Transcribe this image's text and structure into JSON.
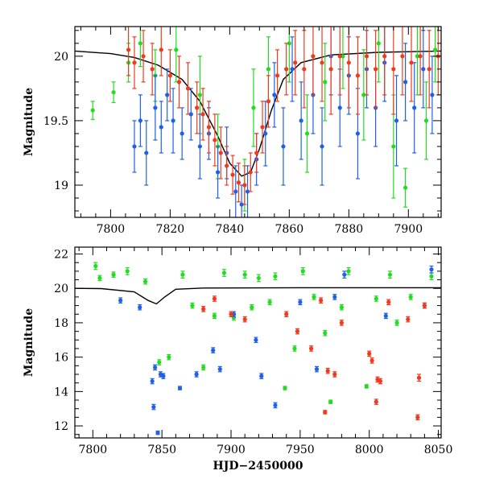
{
  "chart_data": [
    {
      "type": "scatter",
      "title": "",
      "xlabel": "",
      "ylabel": "Magnitude",
      "xlim": [
        7788,
        7911
      ],
      "ylim": [
        20.23,
        18.75
      ],
      "y_inverted": true,
      "grid": false,
      "x_ticks": [
        7800,
        7820,
        7840,
        7860,
        7880,
        7900
      ],
      "y_ticks": [
        19,
        19.5,
        20
      ],
      "y_tick_labels": [
        "19",
        "19.5",
        "20"
      ],
      "x_minor_step": 5,
      "y_minor_step": 0.1,
      "error_bars": true,
      "model_curve": {
        "color": "#000000",
        "points": [
          [
            7788,
            20.04
          ],
          [
            7800,
            20.02
          ],
          [
            7808,
            19.99
          ],
          [
            7816,
            19.93
          ],
          [
            7824,
            19.82
          ],
          [
            7830,
            19.65
          ],
          [
            7836,
            19.38
          ],
          [
            7840,
            19.17
          ],
          [
            7844,
            19.07
          ],
          [
            7847,
            19.1
          ],
          [
            7850,
            19.28
          ],
          [
            7854,
            19.58
          ],
          [
            7858,
            19.82
          ],
          [
            7864,
            19.95
          ],
          [
            7874,
            20.01
          ],
          [
            7890,
            20.03
          ],
          [
            7911,
            20.04
          ]
        ]
      },
      "series": [
        {
          "name": "",
          "color": "#21dc21",
          "points": [
            [
              7794,
              19.58,
              0.07
            ],
            [
              7801,
              19.72,
              0.08
            ],
            [
              7806,
              19.95,
              0.15
            ],
            [
              7810,
              20.1,
              0.18
            ],
            [
              7815,
              19.85,
              0.2
            ],
            [
              7822,
              20.05,
              0.25
            ],
            [
              7830,
              19.7,
              0.3
            ],
            [
              7836,
              19.3,
              0.25
            ],
            [
              7845,
              19.0,
              0.2
            ],
            [
              7848,
              19.6,
              0.3
            ],
            [
              7853,
              19.9,
              0.25
            ],
            [
              7860,
              20.1,
              0.3
            ],
            [
              7866,
              19.4,
              0.3
            ],
            [
              7872,
              19.8,
              0.3
            ],
            [
              7878,
              20.0,
              0.25
            ],
            [
              7885,
              19.7,
              0.35
            ],
            [
              7890,
              20.1,
              0.3
            ],
            [
              7895,
              19.3,
              0.4
            ],
            [
              7899,
              18.98,
              0.15
            ],
            [
              7903,
              20.0,
              0.3
            ],
            [
              7906,
              19.5,
              0.3
            ],
            [
              7909,
              20.05,
              0.25
            ]
          ]
        },
        {
          "name": "",
          "color": "#2060e8",
          "points": [
            [
              7808,
              19.3,
              0.2
            ],
            [
              7810,
              19.5,
              0.2
            ],
            [
              7812,
              19.25,
              0.25
            ],
            [
              7815,
              19.6,
              0.25
            ],
            [
              7817,
              19.45,
              0.2
            ],
            [
              7819,
              19.7,
              0.2
            ],
            [
              7821,
              19.5,
              0.25
            ],
            [
              7824,
              19.4,
              0.2
            ],
            [
              7827,
              19.55,
              0.2
            ],
            [
              7830,
              19.3,
              0.25
            ],
            [
              7833,
              19.4,
              0.2
            ],
            [
              7836,
              19.1,
              0.2
            ],
            [
              7839,
              19.25,
              0.2
            ],
            [
              7842,
              18.95,
              0.2
            ],
            [
              7844,
              18.85,
              0.15
            ],
            [
              7846,
              18.95,
              0.2
            ],
            [
              7849,
              19.2,
              0.2
            ],
            [
              7852,
              19.4,
              0.25
            ],
            [
              7855,
              19.7,
              0.25
            ],
            [
              7858,
              19.3,
              0.3
            ],
            [
              7861,
              19.9,
              0.25
            ],
            [
              7864,
              19.5,
              0.3
            ],
            [
              7868,
              19.7,
              0.3
            ],
            [
              7871,
              19.3,
              0.3
            ],
            [
              7874,
              20.0,
              0.3
            ],
            [
              7877,
              19.6,
              0.3
            ],
            [
              7880,
              19.85,
              0.3
            ],
            [
              7883,
              19.4,
              0.35
            ],
            [
              7886,
              19.9,
              0.3
            ],
            [
              7889,
              19.6,
              0.3
            ],
            [
              7892,
              19.95,
              0.3
            ],
            [
              7896,
              19.5,
              0.35
            ],
            [
              7899,
              19.8,
              0.3
            ],
            [
              7902,
              19.6,
              0.35
            ],
            [
              7905,
              19.9,
              0.3
            ],
            [
              7908,
              19.7,
              0.3
            ]
          ]
        },
        {
          "name": "",
          "color": "#f03a1e",
          "points": [
            [
              7806,
              20.05,
              0.2
            ],
            [
              7808,
              19.95,
              0.2
            ],
            [
              7811,
              20.0,
              0.2
            ],
            [
              7814,
              19.9,
              0.2
            ],
            [
              7817,
              20.05,
              0.2
            ],
            [
              7820,
              19.85,
              0.2
            ],
            [
              7823,
              19.8,
              0.2
            ],
            [
              7826,
              19.75,
              0.2
            ],
            [
              7829,
              19.6,
              0.2
            ],
            [
              7831,
              19.55,
              0.2
            ],
            [
              7833,
              19.45,
              0.2
            ],
            [
              7835,
              19.35,
              0.2
            ],
            [
              7837,
              19.25,
              0.2
            ],
            [
              7839,
              19.15,
              0.15
            ],
            [
              7841,
              19.08,
              0.15
            ],
            [
              7843,
              19.02,
              0.15
            ],
            [
              7845,
              19.0,
              0.15
            ],
            [
              7847,
              19.1,
              0.15
            ],
            [
              7849,
              19.25,
              0.15
            ],
            [
              7851,
              19.45,
              0.2
            ],
            [
              7853,
              19.65,
              0.2
            ],
            [
              7856,
              19.85,
              0.2
            ],
            [
              7859,
              19.9,
              0.2
            ],
            [
              7862,
              19.95,
              0.25
            ],
            [
              7865,
              19.9,
              0.3
            ],
            [
              7868,
              20.0,
              0.3
            ],
            [
              7871,
              19.95,
              0.3
            ],
            [
              7874,
              19.9,
              0.35
            ],
            [
              7877,
              20.0,
              0.3
            ],
            [
              7880,
              19.95,
              0.35
            ],
            [
              7883,
              19.85,
              0.3
            ],
            [
              7886,
              20.0,
              0.3
            ],
            [
              7889,
              19.9,
              0.3
            ],
            [
              7892,
              20.0,
              0.3
            ],
            [
              7895,
              19.9,
              0.35
            ],
            [
              7898,
              20.0,
              0.3
            ],
            [
              7901,
              19.95,
              0.3
            ],
            [
              7904,
              20.0,
              0.3
            ],
            [
              7907,
              19.9,
              0.3
            ],
            [
              7910,
              20.0,
              0.3
            ]
          ]
        }
      ]
    },
    {
      "type": "scatter",
      "title": "",
      "xlabel": "HJD−2450000",
      "ylabel": "Magnitude",
      "xlim": [
        7787,
        8052
      ],
      "ylim": [
        22.4,
        11.3
      ],
      "y_inverted": true,
      "grid": false,
      "x_ticks": [
        7800,
        7850,
        7900,
        7950,
        8000,
        8050
      ],
      "y_ticks": [
        12,
        14,
        16,
        18,
        20,
        22
      ],
      "y_tick_labels": [
        "12",
        "14",
        "16",
        "18",
        "20",
        "22"
      ],
      "x_minor_step": 10,
      "y_minor_step": 0.5,
      "error_bars": true,
      "model_curve": {
        "color": "#000000",
        "points": [
          [
            7787,
            20.0
          ],
          [
            7806,
            19.99
          ],
          [
            7830,
            19.8
          ],
          [
            7840,
            19.3
          ],
          [
            7846,
            19.1
          ],
          [
            7852,
            19.5
          ],
          [
            7860,
            19.95
          ],
          [
            7880,
            20.02
          ],
          [
            7950,
            20.04
          ],
          [
            8052,
            20.04
          ]
        ]
      },
      "series": [
        {
          "name": "",
          "color": "#21dc21",
          "points": [
            [
              7802,
              21.3,
              0.2
            ],
            [
              7805,
              20.6,
              0.15
            ],
            [
              7815,
              20.8,
              0.15
            ],
            [
              7825,
              21.0,
              0.2
            ],
            [
              7838,
              20.4,
              0.15
            ],
            [
              7848,
              15.7,
              0.15
            ],
            [
              7855,
              16.0,
              0.15
            ],
            [
              7865,
              20.8,
              0.2
            ],
            [
              7872,
              19.0,
              0.15
            ],
            [
              7880,
              15.4,
              0.15
            ],
            [
              7888,
              18.4,
              0.15
            ],
            [
              7895,
              20.9,
              0.2
            ],
            [
              7902,
              18.3,
              0.15
            ],
            [
              7910,
              20.8,
              0.2
            ],
            [
              7915,
              18.9,
              0.15
            ],
            [
              7920,
              20.6,
              0.2
            ],
            [
              7928,
              19.2,
              0.15
            ],
            [
              7932,
              20.7,
              0.2
            ],
            [
              7939,
              14.2,
              0.1
            ],
            [
              7946,
              16.5,
              0.15
            ],
            [
              7952,
              21.0,
              0.2
            ],
            [
              7960,
              19.5,
              0.15
            ],
            [
              7968,
              17.4,
              0.15
            ],
            [
              7972,
              13.4,
              0.1
            ],
            [
              7980,
              18.9,
              0.15
            ],
            [
              7985,
              21.0,
              0.2
            ],
            [
              7998,
              14.3,
              0.1
            ],
            [
              8005,
              19.4,
              0.15
            ],
            [
              8015,
              20.8,
              0.2
            ],
            [
              8020,
              18.0,
              0.15
            ],
            [
              8030,
              19.5,
              0.15
            ],
            [
              8045,
              20.7,
              0.2
            ]
          ]
        },
        {
          "name": "",
          "color": "#2060e8",
          "points": [
            [
              7820,
              19.3,
              0.15
            ],
            [
              7834,
              18.9,
              0.15
            ],
            [
              7843,
              14.6,
              0.15
            ],
            [
              7844,
              13.1,
              0.15
            ],
            [
              7845,
              15.4,
              0.15
            ],
            [
              7847,
              11.6,
              0.1
            ],
            [
              7849,
              15.0,
              0.15
            ],
            [
              7851,
              14.9,
              0.15
            ],
            [
              7863,
              14.2,
              0.1
            ],
            [
              7875,
              15.0,
              0.15
            ],
            [
              7887,
              16.4,
              0.15
            ],
            [
              7892,
              15.3,
              0.15
            ],
            [
              7902,
              18.5,
              0.15
            ],
            [
              7918,
              17.0,
              0.15
            ],
            [
              7922,
              14.9,
              0.15
            ],
            [
              7932,
              13.2,
              0.15
            ],
            [
              7950,
              19.2,
              0.15
            ],
            [
              7962,
              15.3,
              0.15
            ],
            [
              7975,
              19.5,
              0.15
            ],
            [
              7982,
              20.8,
              0.2
            ],
            [
              8012,
              18.4,
              0.15
            ],
            [
              8040,
              19.0,
              0.15
            ],
            [
              8045,
              21.1,
              0.2
            ]
          ]
        },
        {
          "name": "",
          "color": "#f03a1e",
          "points": [
            [
              7880,
              18.8,
              0.15
            ],
            [
              7888,
              19.4,
              0.15
            ],
            [
              7900,
              18.5,
              0.15
            ],
            [
              7910,
              18.2,
              0.15
            ],
            [
              7940,
              18.5,
              0.15
            ],
            [
              7948,
              17.5,
              0.15
            ],
            [
              7958,
              16.5,
              0.15
            ],
            [
              7965,
              19.3,
              0.15
            ],
            [
              7968,
              12.8,
              0.1
            ],
            [
              7970,
              15.2,
              0.15
            ],
            [
              7975,
              15.0,
              0.15
            ],
            [
              7980,
              18.0,
              0.15
            ],
            [
              8000,
              16.2,
              0.15
            ],
            [
              8002,
              15.8,
              0.15
            ],
            [
              8005,
              13.4,
              0.15
            ],
            [
              8006,
              14.7,
              0.15
            ],
            [
              8008,
              14.6,
              0.15
            ],
            [
              8014,
              19.2,
              0.15
            ],
            [
              8028,
              18.2,
              0.15
            ],
            [
              8035,
              12.5,
              0.15
            ],
            [
              8036,
              14.8,
              0.2
            ],
            [
              8040,
              19.0,
              0.15
            ]
          ]
        }
      ]
    }
  ]
}
